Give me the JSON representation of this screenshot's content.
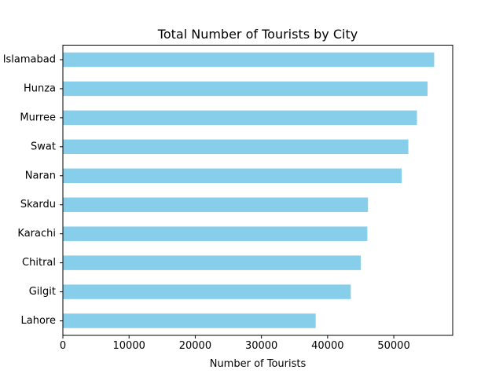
{
  "chart_data": {
    "type": "bar",
    "orientation": "horizontal",
    "title": "Total Number of Tourists by City",
    "xlabel": "Number of Tourists",
    "ylabel": "",
    "categories": [
      "Lahore",
      "Gilgit",
      "Chitral",
      "Karachi",
      "Skardu",
      "Naran",
      "Swat",
      "Murree",
      "Hunza",
      "Islamabad"
    ],
    "values": [
      38200,
      43500,
      45000,
      46000,
      46100,
      51200,
      52200,
      53500,
      55100,
      56100
    ],
    "xlim": [
      0,
      58900
    ],
    "xticks": [
      0,
      10000,
      20000,
      30000,
      40000,
      50000
    ],
    "grid": false,
    "bar_color": "#87ceeb"
  }
}
